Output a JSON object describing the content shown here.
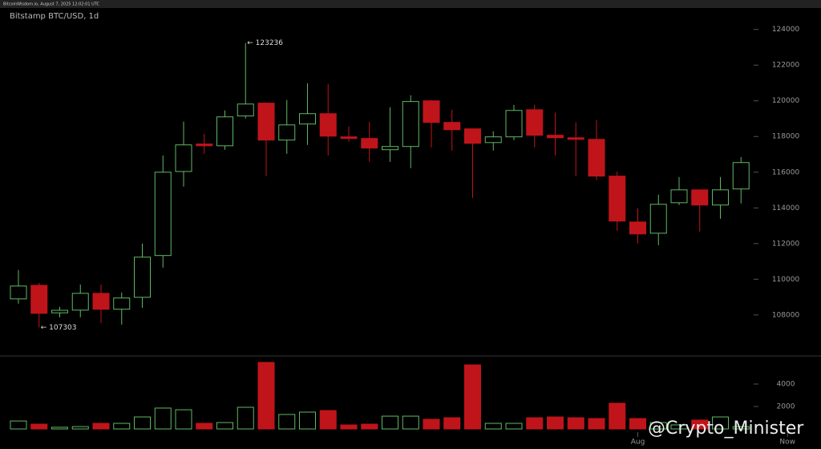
{
  "header": {
    "text": "BitcoinWisdom.io, August 7, 2025 12:02:01 UTC"
  },
  "watermark": "@Crypto_Minister",
  "chart_data": {
    "type": "candlestick",
    "title": "Bitstamp BTC/USD, 1d",
    "up_color": "#5fb865",
    "down_color": "#c0141b",
    "open": [
      108900,
      109660,
      108120,
      108270,
      109210,
      108320,
      108990,
      111330,
      116040,
      117580,
      117480,
      119150,
      119870,
      117800,
      118700,
      119280,
      117980,
      117890,
      117260,
      117440,
      120000,
      118790,
      118430,
      117660,
      117980,
      119500,
      118070,
      117930,
      117840,
      115780,
      113210,
      112580,
      114290,
      115010,
      114160,
      115060
    ],
    "high": [
      110520,
      109800,
      108450,
      109710,
      109710,
      109260,
      112000,
      116940,
      118830,
      118160,
      119460,
      123236,
      119910,
      120050,
      120990,
      120940,
      118560,
      118830,
      119640,
      120310,
      120050,
      119500,
      118430,
      118290,
      119770,
      119770,
      119330,
      118790,
      118920,
      116040,
      113980,
      114740,
      115730,
      115010,
      115730,
      116850
    ],
    "low": [
      108630,
      107303,
      107870,
      107870,
      107550,
      107460,
      108400,
      110650,
      115190,
      117030,
      117260,
      119010,
      115780,
      117030,
      117530,
      116940,
      117710,
      116580,
      116580,
      116230,
      117390,
      117210,
      114560,
      117210,
      117800,
      117390,
      116940,
      115780,
      115550,
      112720,
      112000,
      111910,
      114160,
      112670,
      113390,
      114250
    ],
    "close": [
      109620,
      108090,
      108260,
      109210,
      108320,
      108950,
      111240,
      116000,
      117530,
      117480,
      119100,
      119820,
      117800,
      118650,
      119280,
      118020,
      117890,
      117350,
      117440,
      119960,
      118790,
      118380,
      117620,
      117980,
      119460,
      118070,
      117930,
      117840,
      115780,
      113260,
      112540,
      114200,
      115010,
      114160,
      115010,
      116540
    ],
    "volume": [
      710,
      430,
      150,
      210,
      500,
      500,
      1070,
      1860,
      1710,
      500,
      570,
      1930,
      5930,
      1290,
      1500,
      1640,
      360,
      430,
      1140,
      1140,
      860,
      1000,
      5710,
      500,
      500,
      1000,
      1070,
      1000,
      930,
      2290,
      930,
      570,
      360,
      790,
      1070,
      210
    ],
    "ylim": [
      105700,
      125200
    ],
    "yticks": [
      108000,
      110000,
      112000,
      114000,
      116000,
      118000,
      120000,
      122000,
      124000
    ],
    "vlim": [
      0,
      6500
    ],
    "vticks": [
      2000,
      4000
    ],
    "xticks": [
      {
        "value": 30,
        "label": "Aug"
      },
      {
        "value": 37.25,
        "label": "Now"
      }
    ],
    "annotations": [
      {
        "index": 11,
        "value": 123236,
        "label": "← 123236"
      },
      {
        "index": 1,
        "value": 107303,
        "label": "← 107303"
      }
    ]
  }
}
